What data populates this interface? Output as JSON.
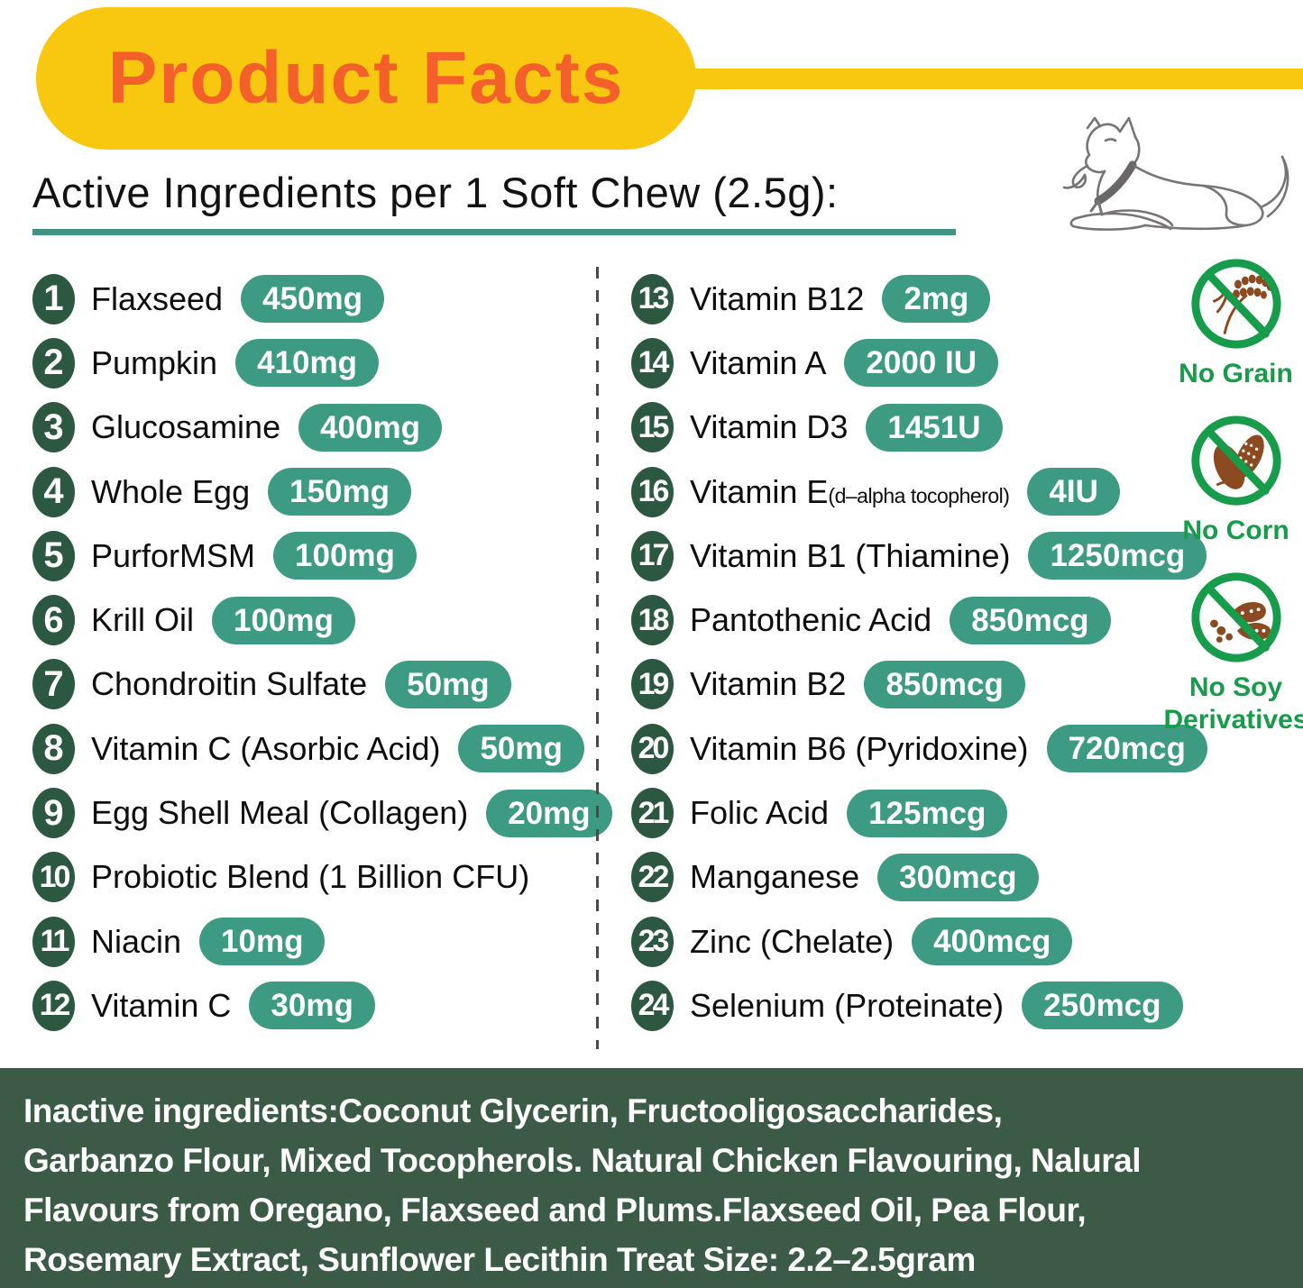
{
  "banner": {
    "title": "Product Facts"
  },
  "header": {
    "title": "Active Ingredients per 1 Soft Chew (2.5g):"
  },
  "ingredients": {
    "left": [
      {
        "num": "1",
        "name": "Flaxseed",
        "amount": "450mg"
      },
      {
        "num": "2",
        "name": "Pumpkin",
        "amount": "410mg"
      },
      {
        "num": "3",
        "name": "Glucosamine",
        "amount": "400mg"
      },
      {
        "num": "4",
        "name": "Whole Egg",
        "amount": "150mg"
      },
      {
        "num": "5",
        "name": "PurforMSM",
        "amount": "100mg"
      },
      {
        "num": "6",
        "name": "Krill Oil",
        "amount": "100mg"
      },
      {
        "num": "7",
        "name": "Chondroitin Sulfate",
        "amount": "50mg"
      },
      {
        "num": "8",
        "name": "Vitamin C (Asorbic Acid)",
        "amount": "50mg"
      },
      {
        "num": "9",
        "name": "Egg Shell Meal (Collagen)",
        "amount": "20mg"
      },
      {
        "num": "10",
        "name": "Probiotic Blend (1 Billion CFU)",
        "amount": ""
      },
      {
        "num": "11",
        "name": "Niacin",
        "amount": "10mg"
      },
      {
        "num": "12",
        "name": "Vitamin C",
        "amount": "30mg"
      }
    ],
    "right": [
      {
        "num": "13",
        "name": "Vitamin B12",
        "amount": "2mg"
      },
      {
        "num": "14",
        "name": "Vitamin A",
        "amount": "2000 IU"
      },
      {
        "num": "15",
        "name": "Vitamin D3",
        "amount": "1451U"
      },
      {
        "num": "16",
        "name": "Vitamin E",
        "name_small": "(d–alpha tocopherol)",
        "amount": "4IU"
      },
      {
        "num": "17",
        "name": "Vitamin B1 (Thiamine)",
        "amount": "1250mcg"
      },
      {
        "num": "18",
        "name": "Pantothenic Acid",
        "amount": "850mcg"
      },
      {
        "num": "19",
        "name": "Vitamin B2",
        "amount": "850mcg"
      },
      {
        "num": "20",
        "name": "Vitamin B6 (Pyridoxine)",
        "amount": "720mcg"
      },
      {
        "num": "21",
        "name": "Folic Acid",
        "amount": "125mcg"
      },
      {
        "num": "22",
        "name": "Manganese",
        "amount": "300mcg"
      },
      {
        "num": "23",
        "name": "Zinc (Chelate)",
        "amount": "400mcg"
      },
      {
        "num": "24",
        "name": "Selenium (Proteinate)",
        "amount": "250mcg"
      }
    ]
  },
  "badges": [
    {
      "icon": "no-grain-icon",
      "label": "No Grain"
    },
    {
      "icon": "no-corn-icon",
      "label": "No Corn"
    },
    {
      "icon": "no-soy-icon",
      "label": "No Soy Derivatives"
    }
  ],
  "footer": {
    "lines": [
      "Inactive ingredients:Coconut Glycerin, Fructooligosaccharides,",
      "Garbanzo Flour, Mixed Tocopherols. Natural Chicken Flavouring, Nalural",
      "Flavours from Oregano, Flaxseed and Plums.Flaxseed Oil, Pea Flour,",
      "Rosemary Extract, Sunflower Lecithin Treat Size: 2.2–2.5gram"
    ]
  },
  "colors": {
    "banner_yellow": "#F8C70F",
    "banner_orange": "#F3602A",
    "underline_teal": "#3E9383",
    "number_circle_green": "#2C5741",
    "amount_pill_green": "#3E9B83",
    "badge_green": "#169C4A",
    "badge_brown": "#8B4A1F",
    "footer_background": "#3B5B46"
  }
}
